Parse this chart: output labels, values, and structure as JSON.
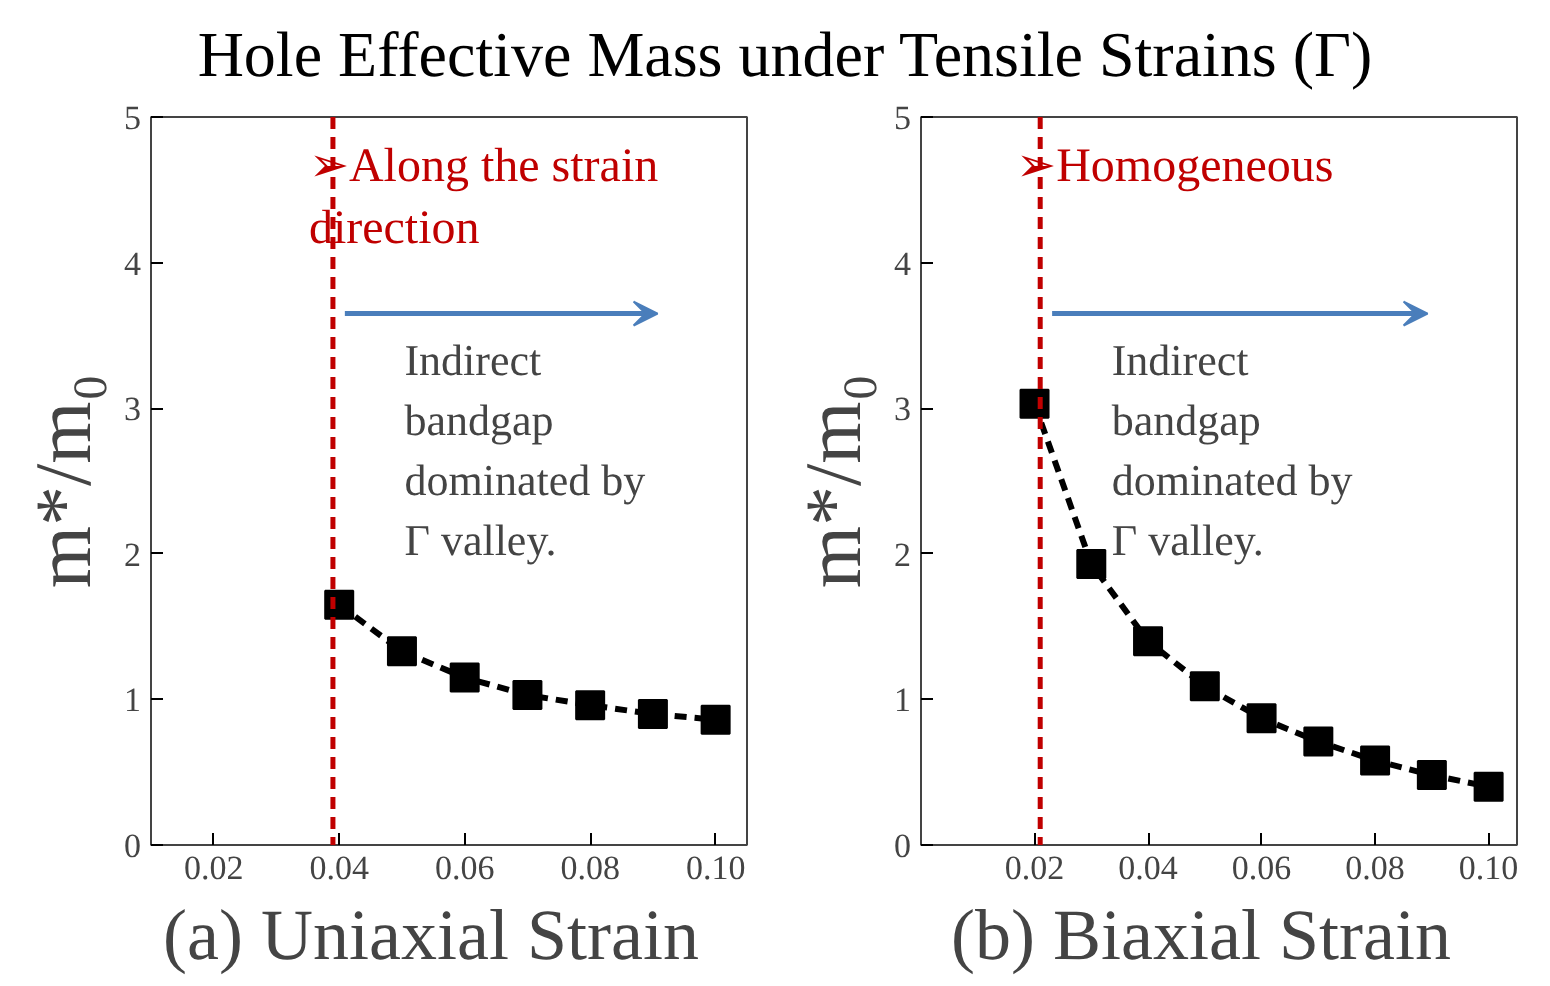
{
  "chart_data": [
    {
      "type": "line",
      "title": "Hole Effective Mass under Tensile Strains (Γ)",
      "xlabel": "(a)   Uniaxial Strain",
      "ylabel": "m*/m₀",
      "x": [
        0.04,
        0.05,
        0.06,
        0.07,
        0.08,
        0.09,
        0.1
      ],
      "series": [
        {
          "color": "#000000",
          "values": [
            1.65,
            1.33,
            1.15,
            1.03,
            0.96,
            0.9,
            0.86
          ]
        }
      ],
      "xlim": [
        0.01,
        0.105
      ],
      "xticks": [
        0.02,
        0.04,
        0.06,
        0.08,
        {
          "value": 0.1,
          "label": "0.10"
        }
      ],
      "ylim": [
        0,
        5
      ],
      "yticks": [
        0,
        1,
        2,
        3,
        4,
        5
      ],
      "grid": false,
      "marker": "square",
      "line_style": "dashed",
      "ref_lines": [
        {
          "axis": "x",
          "value": 0.039,
          "label": "➢Along the strain\ndirection",
          "color": "#c00000",
          "line_style": "dashed"
        }
      ],
      "annotations": [
        "Indirect\nbandgap\ndominated by\nΓ valley."
      ]
    },
    {
      "type": "line",
      "xlabel": "(b)   Biaxial Strain",
      "ylabel": "m*/m₀",
      "x": [
        0.02,
        0.03,
        0.04,
        0.05,
        0.06,
        0.07,
        0.08,
        0.09,
        0.1
      ],
      "series": [
        {
          "color": "#000000",
          "values": [
            3.03,
            1.93,
            1.4,
            1.09,
            0.87,
            0.71,
            0.58,
            0.48,
            0.4
          ]
        }
      ],
      "xlim": [
        0.0,
        0.105
      ],
      "xticks": [
        0.02,
        0.04,
        0.06,
        0.08,
        {
          "value": 0.1,
          "label": "0.10"
        }
      ],
      "ylim": [
        0,
        5
      ],
      "yticks": [
        0,
        1,
        2,
        3,
        4,
        5
      ],
      "grid": false,
      "marker": "square",
      "line_style": "dashed",
      "ref_lines": [
        {
          "axis": "x",
          "value": 0.021,
          "label": "➢Homogeneous",
          "color": "#c00000",
          "line_style": "dashed"
        }
      ],
      "annotations": [
        "Indirect\nbandgap\ndominated by\nΓ valley."
      ]
    }
  ]
}
